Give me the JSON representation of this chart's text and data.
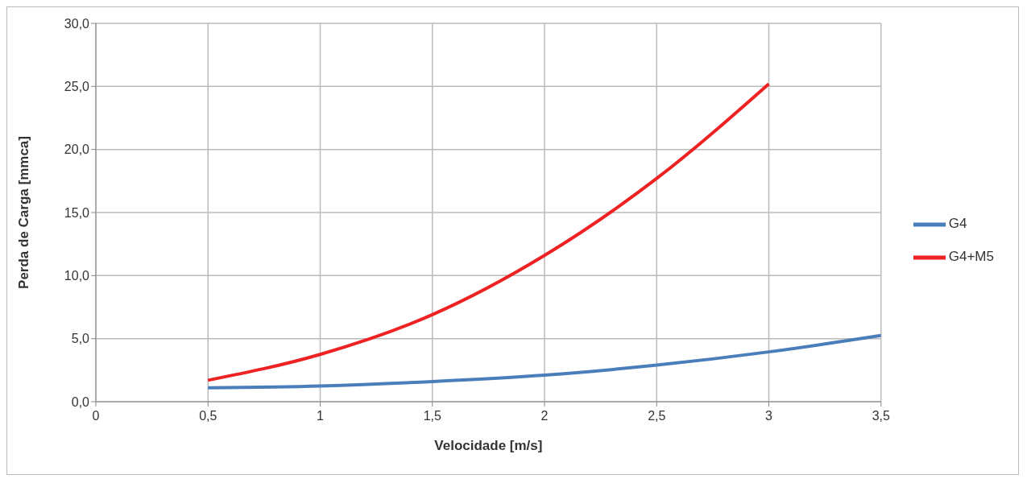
{
  "chart_data": {
    "type": "line",
    "xlabel": "Velocidade [m/s]",
    "ylabel": "Perda de Carga [mmca]",
    "xlim": [
      0,
      3.5
    ],
    "ylim": [
      0,
      30
    ],
    "xticks": [
      0,
      {
        "value": 0.5,
        "label": "0,5"
      },
      1,
      {
        "value": 1.5,
        "label": "1,5"
      },
      2,
      {
        "value": 2.5,
        "label": "2,5"
      },
      3,
      {
        "value": 3.5,
        "label": "3,5"
      }
    ],
    "yticks": [
      {
        "value": 0,
        "label": "0,0"
      },
      {
        "value": 5,
        "label": "5,0"
      },
      {
        "value": 10,
        "label": "10,0"
      },
      {
        "value": 15,
        "label": "15,0"
      },
      {
        "value": 20,
        "label": "20,0"
      },
      {
        "value": 25,
        "label": "25,0"
      },
      {
        "value": 30,
        "label": "30,0"
      }
    ],
    "grid": true,
    "legend": "right",
    "marker": "none",
    "line_style": "solid",
    "series": [
      {
        "name": "G4",
        "color": "#4a7ebb",
        "x": [
          0.5,
          1,
          1.5,
          2,
          2.5,
          3,
          3.5
        ],
        "values": [
          1.1,
          1.25,
          1.6,
          2.1,
          2.9,
          3.95,
          5.25
        ]
      },
      {
        "name": "G4+M5",
        "color": "#ee2222",
        "x": [
          0.5,
          1,
          1.5,
          2,
          2.5,
          3
        ],
        "values": [
          1.7,
          3.75,
          6.9,
          11.6,
          17.7,
          25.2
        ]
      }
    ]
  }
}
